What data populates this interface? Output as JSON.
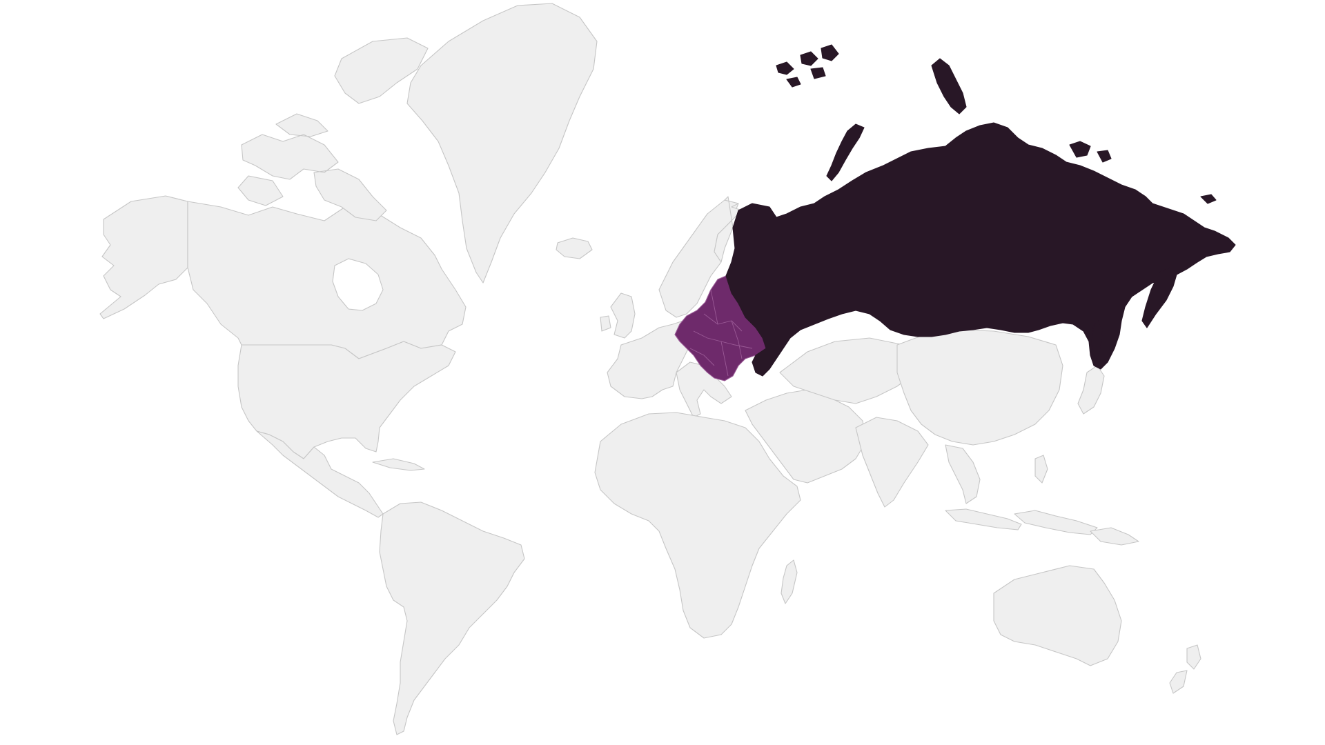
{
  "map": {
    "projection": "mercator",
    "colors": {
      "background": "#ffffff",
      "land": "#efefef",
      "border": "#c6c6c6",
      "russia": "#281726",
      "eastern_europe": "#6e2a6b",
      "eastern_europe_border": "#9a5a96"
    },
    "highlighted_regions": [
      {
        "name": "russia",
        "color_key": "russia"
      },
      {
        "name": "eastern-europe",
        "color_key": "eastern_europe"
      }
    ]
  }
}
